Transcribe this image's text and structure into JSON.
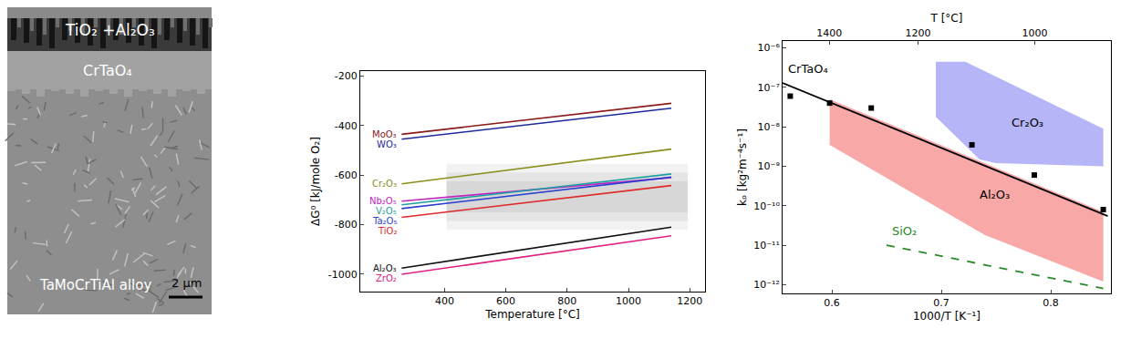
{
  "image": {
    "labels": [
      "TiO₂ +Al₂O₃",
      "CrTaO₄",
      "TaMoCrTiAl alloy"
    ],
    "scale_bar": "2 μm"
  },
  "chart_data": [
    {
      "type": "line",
      "xlabel": "Temperature [°C]",
      "ylabel": "ΔG⁰ [kJ/mole O₂]",
      "xlim": [
        125,
        1250
      ],
      "xticks": [
        400,
        600,
        800,
        1000,
        1200
      ],
      "ylim": [
        -1070,
        -180
      ],
      "yticks": [
        -1000,
        -800,
        -600,
        -400,
        -200
      ],
      "grid": false,
      "x": [
        260,
        1140
      ],
      "series": [
        {
          "name": "MoO₃",
          "color": "#8b1a1a",
          "values": [
            -435,
            -310
          ]
        },
        {
          "name": "WO₃",
          "color": "#1f2a9c",
          "values": [
            -455,
            -330
          ]
        },
        {
          "name": "Cr₂O₃",
          "color": "#8c8c1c",
          "values": [
            -635,
            -495
          ]
        },
        {
          "name": "Nb₂O₅",
          "color": "#c026c0",
          "values": [
            -705,
            -610
          ]
        },
        {
          "name": "V₂O₅",
          "color": "#1fa0a0",
          "values": [
            -720,
            -595
          ]
        },
        {
          "name": "Ta₂O₅",
          "color": "#2a3fd0",
          "values": [
            -735,
            -608
          ]
        },
        {
          "name": "TiO₂",
          "color": "#e02828",
          "values": [
            -770,
            -642
          ]
        },
        {
          "name": "Al₂O₃",
          "color": "#111111",
          "values": [
            -975,
            -810
          ]
        },
        {
          "name": "ZrO₂",
          "color": "#e0207f",
          "values": [
            -1000,
            -845
          ]
        }
      ]
    },
    {
      "type": "scatter",
      "xlabel": "1000/T [K⁻¹]",
      "ylabel": "kₚ [kg²m⁻⁴s⁻¹]",
      "x2label": "T [°C]",
      "xlim": [
        0.555,
        0.855
      ],
      "xticks": [
        0.6,
        0.7,
        0.8
      ],
      "x2ticks": [
        1400,
        1200,
        1000
      ],
      "ylim": [
        6e-13,
        1.5e-06
      ],
      "yticks": [
        {
          "value": 1e-12,
          "label": "10⁻¹²"
        },
        {
          "value": 1e-11,
          "label": "10⁻¹¹"
        },
        {
          "value": 1e-10,
          "label": "10⁻¹⁰"
        },
        {
          "value": 1e-09,
          "label": "10⁻⁹"
        },
        {
          "value": 1e-08,
          "label": "10⁻⁸"
        },
        {
          "value": 1e-07,
          "label": "10⁻⁷"
        },
        {
          "value": 1e-06,
          "label": "10⁻⁶"
        }
      ],
      "log": "y",
      "grid": false,
      "series": [
        {
          "name": "Cr₂O₃",
          "type": "area",
          "color": "rgba(120,120,240,0.55)",
          "x": [
            0.695,
            0.722,
            0.848,
            0.848,
            0.75,
            0.735,
            0.695
          ],
          "values": [
            4.5e-07,
            4.5e-07,
            9e-09,
            1e-09,
            1.2e-09,
            1.5e-09,
            1.8e-08
          ]
        },
        {
          "name": "Al₂O₃",
          "type": "area",
          "color": "rgba(245,110,110,0.6)",
          "x": [
            0.598,
            0.848,
            0.848,
            0.74,
            0.598
          ],
          "values": [
            5e-08,
            7e-11,
            1.2e-12,
            1.8e-11,
            3.5e-09
          ]
        },
        {
          "name": "SiO₂",
          "type": "line",
          "color": "#2a8a2a",
          "line_style": "dash",
          "x": [
            0.65,
            0.848
          ],
          "values": [
            1e-11,
            8e-13
          ]
        },
        {
          "name": "CrTaO₄",
          "type": "line",
          "color": "#000000",
          "line_style": "solid",
          "x": [
            0.555,
            0.852
          ],
          "values": [
            1.3e-07,
            5.5e-11
          ]
        },
        {
          "type": "scatter",
          "color": "#000000",
          "marker": "square",
          "x": [
            0.562,
            0.598,
            0.636,
            0.728,
            0.785,
            0.848
          ],
          "values": [
            6e-08,
            4e-08,
            3e-08,
            3.5e-09,
            6e-10,
            8e-11
          ]
        }
      ]
    }
  ]
}
